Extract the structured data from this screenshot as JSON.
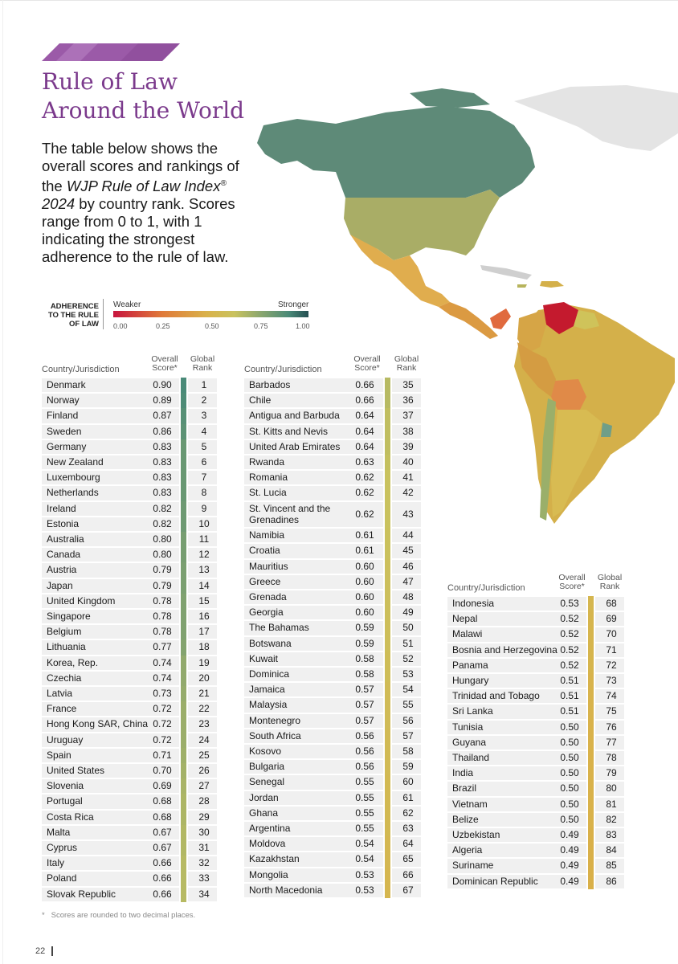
{
  "header": {
    "title_line1": "Rule of Law",
    "title_line2": "Around the World",
    "intro_part1": "The table below shows the overall scores and rankings of the ",
    "intro_index": "WJP Rule of Law Index",
    "intro_reg": "®",
    "intro_year": "2024",
    "intro_part2": " by country rank. Scores range from 0 to 1, with 1 indicating the strongest adherence to the rule of law.",
    "banner_color": "#9b5aa8"
  },
  "legend": {
    "label_line1": "ADHERENCE",
    "label_line2": "TO THE RULE",
    "label_line3": "OF LAW",
    "weaker": "Weaker",
    "stronger": "Stronger",
    "ticks": [
      "0.00",
      "0.25",
      "0.50",
      "0.75",
      "1.00"
    ]
  },
  "table_headers": {
    "country": "Country/Jurisdiction",
    "overall_line1": "Overall",
    "overall_line2": "Score*",
    "global_line1": "Global",
    "global_line2": "Rank"
  },
  "columns": [
    [
      {
        "country": "Denmark",
        "score": "0.90",
        "rank": "1"
      },
      {
        "country": "Norway",
        "score": "0.89",
        "rank": "2"
      },
      {
        "country": "Finland",
        "score": "0.87",
        "rank": "3"
      },
      {
        "country": "Sweden",
        "score": "0.86",
        "rank": "4"
      },
      {
        "country": "Germany",
        "score": "0.83",
        "rank": "5"
      },
      {
        "country": "New Zealand",
        "score": "0.83",
        "rank": "6"
      },
      {
        "country": "Luxembourg",
        "score": "0.83",
        "rank": "7"
      },
      {
        "country": "Netherlands",
        "score": "0.83",
        "rank": "8"
      },
      {
        "country": "Ireland",
        "score": "0.82",
        "rank": "9"
      },
      {
        "country": "Estonia",
        "score": "0.82",
        "rank": "10"
      },
      {
        "country": "Australia",
        "score": "0.80",
        "rank": "11"
      },
      {
        "country": "Canada",
        "score": "0.80",
        "rank": "12"
      },
      {
        "country": "Austria",
        "score": "0.79",
        "rank": "13"
      },
      {
        "country": "Japan",
        "score": "0.79",
        "rank": "14"
      },
      {
        "country": "United Kingdom",
        "score": "0.78",
        "rank": "15"
      },
      {
        "country": "Singapore",
        "score": "0.78",
        "rank": "16"
      },
      {
        "country": "Belgium",
        "score": "0.78",
        "rank": "17"
      },
      {
        "country": "Lithuania",
        "score": "0.77",
        "rank": "18"
      },
      {
        "country": "Korea, Rep.",
        "score": "0.74",
        "rank": "19"
      },
      {
        "country": "Czechia",
        "score": "0.74",
        "rank": "20"
      },
      {
        "country": "Latvia",
        "score": "0.73",
        "rank": "21"
      },
      {
        "country": "France",
        "score": "0.72",
        "rank": "22"
      },
      {
        "country": "Hong Kong SAR, China",
        "score": "0.72",
        "rank": "23"
      },
      {
        "country": "Uruguay",
        "score": "0.72",
        "rank": "24"
      },
      {
        "country": "Spain",
        "score": "0.71",
        "rank": "25"
      },
      {
        "country": "United States",
        "score": "0.70",
        "rank": "26"
      },
      {
        "country": "Slovenia",
        "score": "0.69",
        "rank": "27"
      },
      {
        "country": "Portugal",
        "score": "0.68",
        "rank": "28"
      },
      {
        "country": "Costa Rica",
        "score": "0.68",
        "rank": "29"
      },
      {
        "country": "Malta",
        "score": "0.67",
        "rank": "30"
      },
      {
        "country": "Cyprus",
        "score": "0.67",
        "rank": "31"
      },
      {
        "country": "Italy",
        "score": "0.66",
        "rank": "32"
      },
      {
        "country": "Poland",
        "score": "0.66",
        "rank": "33"
      },
      {
        "country": "Slovak Republic",
        "score": "0.66",
        "rank": "34"
      }
    ],
    [
      {
        "country": "Barbados",
        "score": "0.66",
        "rank": "35"
      },
      {
        "country": "Chile",
        "score": "0.66",
        "rank": "36"
      },
      {
        "country": "Antigua and Barbuda",
        "score": "0.64",
        "rank": "37"
      },
      {
        "country": "St. Kitts and Nevis",
        "score": "0.64",
        "rank": "38"
      },
      {
        "country": "United Arab Emirates",
        "score": "0.64",
        "rank": "39"
      },
      {
        "country": "Rwanda",
        "score": "0.63",
        "rank": "40"
      },
      {
        "country": "Romania",
        "score": "0.62",
        "rank": "41"
      },
      {
        "country": "St. Lucia",
        "score": "0.62",
        "rank": "42"
      },
      {
        "country": "St. Vincent and the",
        "country_line2": "Grenadines",
        "score": "0.62",
        "rank": "43"
      },
      {
        "country": "Namibia",
        "score": "0.61",
        "rank": "44"
      },
      {
        "country": "Croatia",
        "score": "0.61",
        "rank": "45"
      },
      {
        "country": "Mauritius",
        "score": "0.60",
        "rank": "46"
      },
      {
        "country": "Greece",
        "score": "0.60",
        "rank": "47"
      },
      {
        "country": "Grenada",
        "score": "0.60",
        "rank": "48"
      },
      {
        "country": "Georgia",
        "score": "0.60",
        "rank": "49"
      },
      {
        "country": "The Bahamas",
        "score": "0.59",
        "rank": "50"
      },
      {
        "country": "Botswana",
        "score": "0.59",
        "rank": "51"
      },
      {
        "country": "Kuwait",
        "score": "0.58",
        "rank": "52"
      },
      {
        "country": "Dominica",
        "score": "0.58",
        "rank": "53"
      },
      {
        "country": "Jamaica",
        "score": "0.57",
        "rank": "54"
      },
      {
        "country": "Malaysia",
        "score": "0.57",
        "rank": "55"
      },
      {
        "country": "Montenegro",
        "score": "0.57",
        "rank": "56"
      },
      {
        "country": "South Africa",
        "score": "0.56",
        "rank": "57"
      },
      {
        "country": "Kosovo",
        "score": "0.56",
        "rank": "58"
      },
      {
        "country": "Bulgaria",
        "score": "0.56",
        "rank": "59"
      },
      {
        "country": "Senegal",
        "score": "0.55",
        "rank": "60"
      },
      {
        "country": "Jordan",
        "score": "0.55",
        "rank": "61"
      },
      {
        "country": "Ghana",
        "score": "0.55",
        "rank": "62"
      },
      {
        "country": "Argentina",
        "score": "0.55",
        "rank": "63"
      },
      {
        "country": "Moldova",
        "score": "0.54",
        "rank": "64"
      },
      {
        "country": "Kazakhstan",
        "score": "0.54",
        "rank": "65"
      },
      {
        "country": "Mongolia",
        "score": "0.53",
        "rank": "66"
      },
      {
        "country": "North Macedonia",
        "score": "0.53",
        "rank": "67"
      }
    ],
    [
      {
        "country": "Indonesia",
        "score": "0.53",
        "rank": "68"
      },
      {
        "country": "Nepal",
        "score": "0.52",
        "rank": "69"
      },
      {
        "country": "Malawi",
        "score": "0.52",
        "rank": "70"
      },
      {
        "country": "Bosnia and Herzegovina",
        "score": "0.52",
        "rank": "71"
      },
      {
        "country": "Panama",
        "score": "0.52",
        "rank": "72"
      },
      {
        "country": "Hungary",
        "score": "0.51",
        "rank": "73"
      },
      {
        "country": "Trinidad and Tobago",
        "score": "0.51",
        "rank": "74"
      },
      {
        "country": "Sri Lanka",
        "score": "0.51",
        "rank": "75"
      },
      {
        "country": "Tunisia",
        "score": "0.50",
        "rank": "76"
      },
      {
        "country": "Guyana",
        "score": "0.50",
        "rank": "77"
      },
      {
        "country": "Thailand",
        "score": "0.50",
        "rank": "78"
      },
      {
        "country": "India",
        "score": "0.50",
        "rank": "79"
      },
      {
        "country": "Brazil",
        "score": "0.50",
        "rank": "80"
      },
      {
        "country": "Vietnam",
        "score": "0.50",
        "rank": "81"
      },
      {
        "country": "Belize",
        "score": "0.50",
        "rank": "82"
      },
      {
        "country": "Uzbekistan",
        "score": "0.49",
        "rank": "83"
      },
      {
        "country": "Algeria",
        "score": "0.49",
        "rank": "84"
      },
      {
        "country": "Suriname",
        "score": "0.49",
        "rank": "85"
      },
      {
        "country": "Dominican Republic",
        "score": "0.49",
        "rank": "86"
      }
    ]
  ],
  "footnote": "Scores are rounded to two decimal places.",
  "footnote_mark": "*",
  "page_number": "22",
  "colors": {
    "title": "#7b3a8c",
    "row_band": "#f0f0f0",
    "scale": [
      "#c7153e",
      "#e07a3a",
      "#d9b24a",
      "#c9c25e",
      "#8da86e",
      "#4a8a78",
      "#244e52"
    ]
  }
}
